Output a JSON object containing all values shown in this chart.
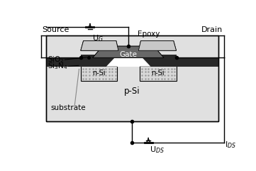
{
  "fig_width": 3.61,
  "fig_height": 2.41,
  "dpi": 100,
  "bg_color": "#ffffff",
  "substrate_color": "#e0e0e0",
  "nsi_color": "#d8d8d8",
  "gate_gray": "#909090",
  "epoxy_color": "#c8c8c8",
  "dark_metal": "#282828",
  "mid_gray": "#686868",
  "white": "#ffffff",
  "labels": {
    "source": "Source",
    "drain": "Drain",
    "gate": "Gate",
    "epoxy": "Epoxy",
    "sio2": "SiO$_2$",
    "si3n4": "Si$_3$N$_4$",
    "nsi_left": "n-Si",
    "nsi_right": "n-Si",
    "psi": "p-Si",
    "substrate": "substrate",
    "ug": "U$_G$",
    "uds": "U$_{DS}$",
    "ids": "I$_{DS}$"
  },
  "font_size": 7.5
}
